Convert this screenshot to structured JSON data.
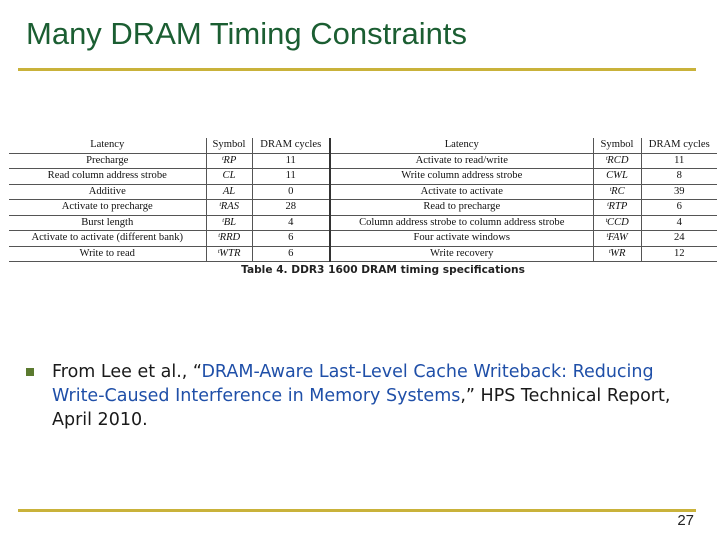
{
  "slide": {
    "title": "Many DRAM Timing Constraints",
    "page_number": "27"
  },
  "table": {
    "headers": [
      "Latency",
      "Symbol",
      "DRAM cycles",
      "Latency",
      "Symbol",
      "DRAM cycles"
    ],
    "rows": [
      [
        "Precharge",
        "ᵗRP",
        "11",
        "Activate to read/write",
        "ᵗRCD",
        "11"
      ],
      [
        "Read column address strobe",
        "CL",
        "11",
        "Write column address strobe",
        "CWL",
        "8"
      ],
      [
        "Additive",
        "AL",
        "0",
        "Activate to activate",
        "ᵗRC",
        "39"
      ],
      [
        "Activate to precharge",
        "ᵗRAS",
        "28",
        "Read to precharge",
        "ᵗRTP",
        "6"
      ],
      [
        "Burst length",
        "ᵗBL",
        "4",
        "Column address strobe to column address strobe",
        "ᵗCCD",
        "4"
      ],
      [
        "Activate to activate (different bank)",
        "ᵗRRD",
        "6",
        "Four activate windows",
        "ᵗFAW",
        "24"
      ],
      [
        "Write to read",
        "ᵗWTR",
        "6",
        "Write recovery",
        "ᵗWR",
        "12"
      ]
    ],
    "caption": "Table 4. DDR3 1600 DRAM timing specifications"
  },
  "reference": {
    "prefix": "From Lee et al., “",
    "title": "DRAM-Aware Last-Level Cache Writeback: Reducing Write-Caused Interference in Memory Systems",
    "suffix": ",” HPS Technical Report, April 2010."
  },
  "colors": {
    "title": "#1b5e32",
    "rule": "#c9b23a",
    "link": "#1f4fa8",
    "bullet": "#5b7a2f"
  }
}
